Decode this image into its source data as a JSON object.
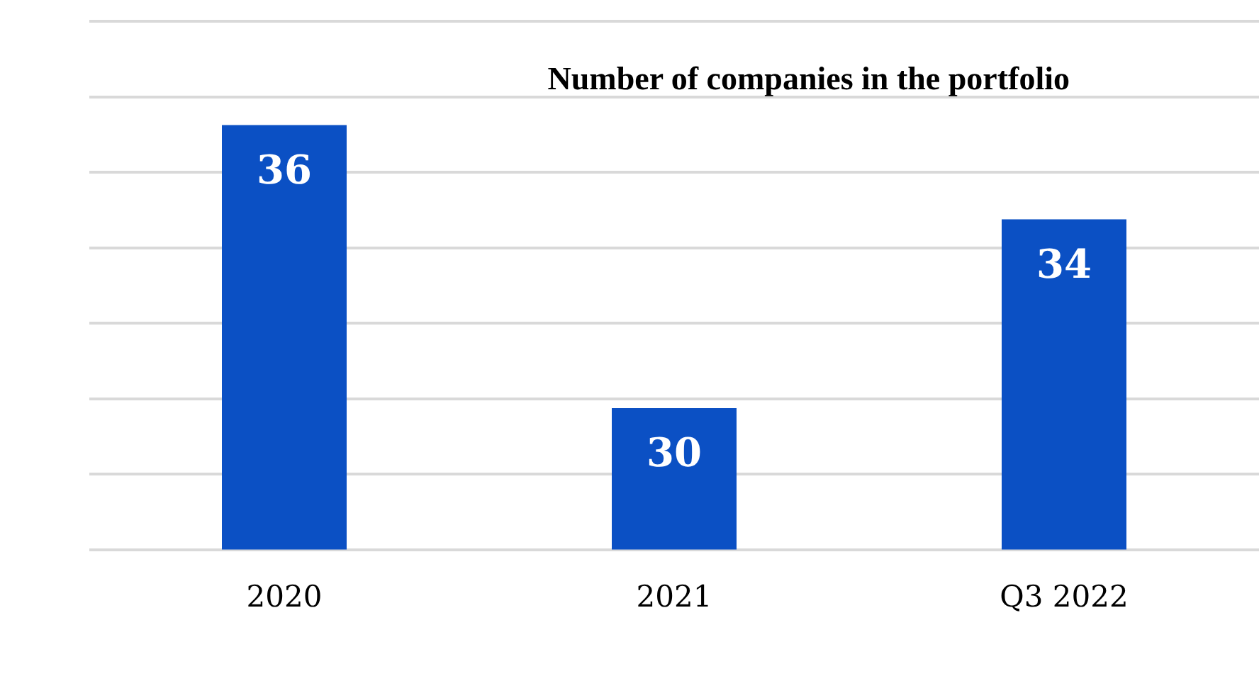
{
  "chart_data": {
    "type": "bar",
    "title": "Number of companies in the portfolio",
    "categories": [
      "2020",
      "2021",
      "Q3 2022"
    ],
    "values": [
      36,
      30,
      34
    ],
    "color": "#0b50c4",
    "data_labels": true,
    "grid": "y",
    "legend": false,
    "tick_labels": "x",
    "ylim": [
      27,
      38.2
    ],
    "yticks": [
      {
        "value": 27,
        "label": null
      },
      {
        "value": 28.6,
        "label": null
      },
      {
        "value": 30.2,
        "label": null
      },
      {
        "value": 31.8,
        "label": null
      },
      {
        "value": 33.4,
        "label": null
      },
      {
        "value": 35,
        "label": null
      },
      {
        "value": 36.6,
        "label": null
      },
      {
        "value": 38.2,
        "label": null
      }
    ]
  }
}
